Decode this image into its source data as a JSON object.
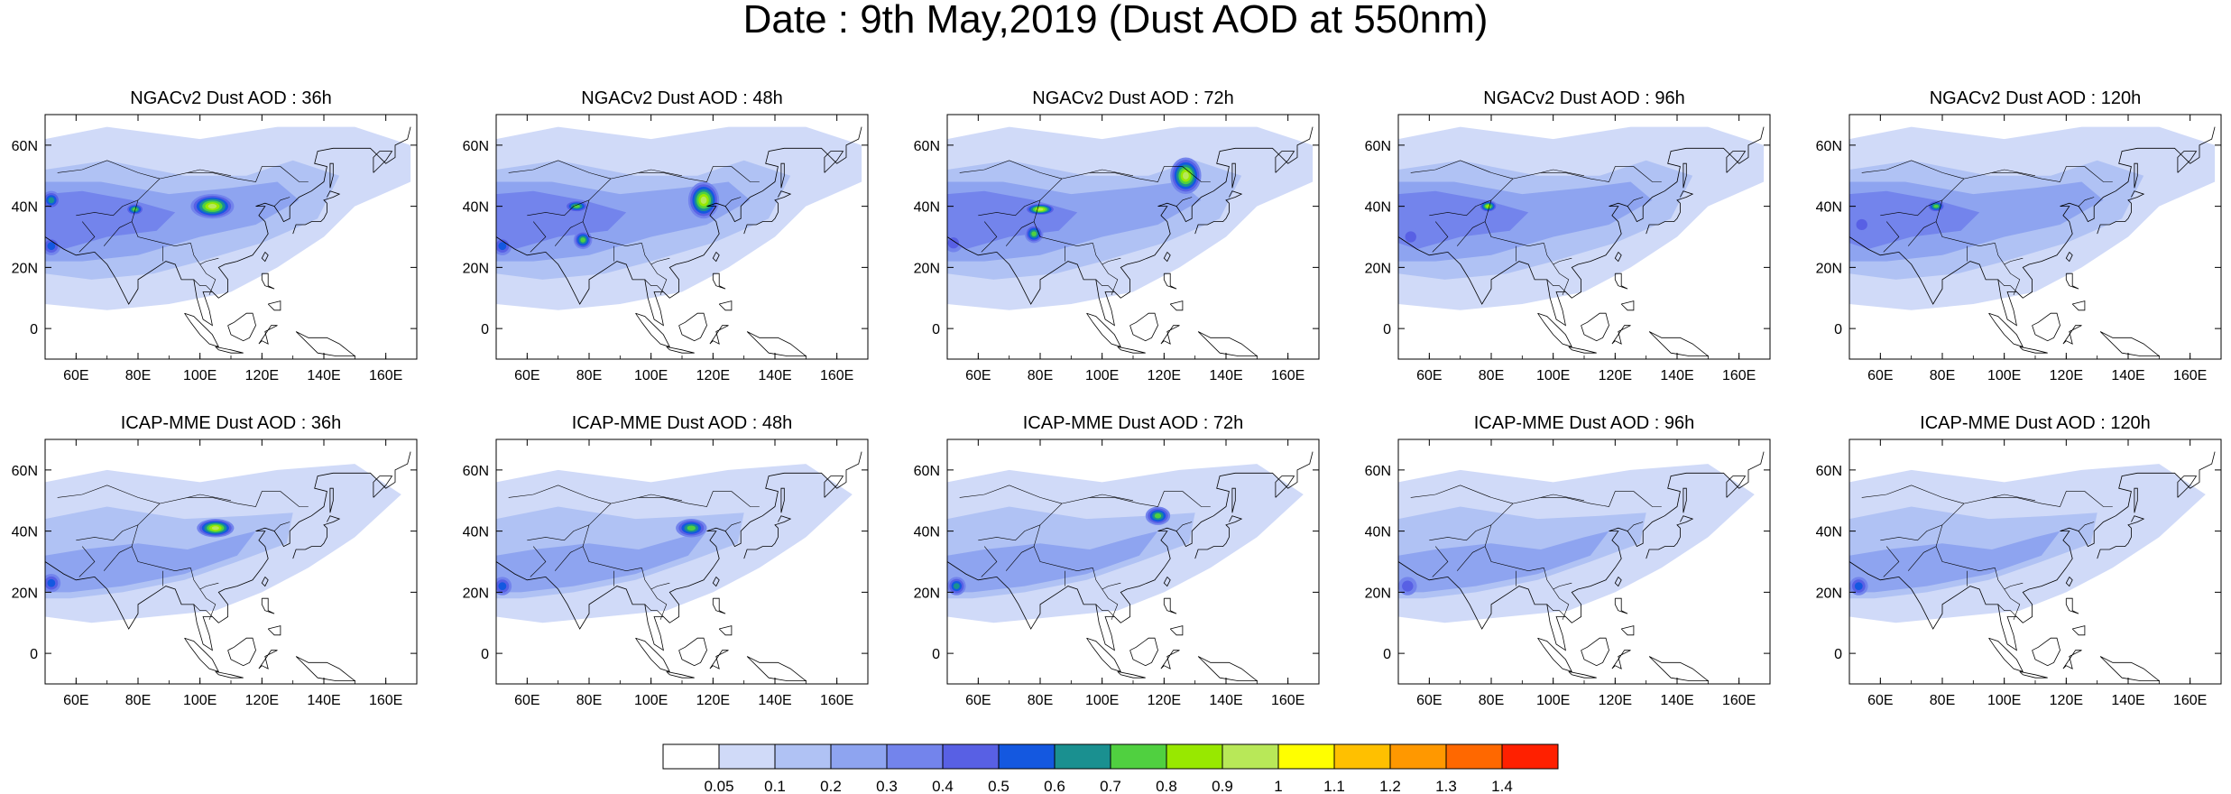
{
  "title": "Date : 9th May,2019 (Dust AOD at 550nm)",
  "lon_ticks": [
    "60E",
    "80E",
    "100E",
    "120E",
    "140E",
    "160E"
  ],
  "lat_ticks": [
    "60N",
    "40N",
    "20N",
    "0"
  ],
  "lon_values": [
    60,
    80,
    100,
    120,
    140,
    160
  ],
  "lat_values": [
    60,
    40,
    20,
    0
  ],
  "extent": {
    "lon_min": 50,
    "lon_max": 170,
    "lat_min": -10,
    "lat_max": 70
  },
  "panels": [
    {
      "title": "NGACv2 Dust AOD : 36h",
      "hotspots": [
        {
          "lon": 104,
          "lat": 40,
          "level": 10,
          "rx": 7,
          "ry": 4
        },
        {
          "lon": 79,
          "lat": 39,
          "level": 8,
          "rx": 3,
          "ry": 2
        },
        {
          "lon": 52,
          "lat": 42,
          "level": 7,
          "rx": 3,
          "ry": 3
        },
        {
          "lon": 52,
          "lat": 27,
          "level": 6,
          "rx": 3,
          "ry": 3
        }
      ]
    },
    {
      "title": "NGACv2 Dust AOD : 48h",
      "hotspots": [
        {
          "lon": 117,
          "lat": 42,
          "level": 10,
          "rx": 5,
          "ry": 6
        },
        {
          "lon": 76,
          "lat": 40,
          "level": 8,
          "rx": 4,
          "ry": 2
        },
        {
          "lon": 78,
          "lat": 29,
          "level": 8,
          "rx": 3,
          "ry": 3
        },
        {
          "lon": 52,
          "lat": 27,
          "level": 6,
          "rx": 3,
          "ry": 3
        }
      ]
    },
    {
      "title": "NGACv2 Dust AOD : 72h",
      "hotspots": [
        {
          "lon": 127,
          "lat": 50,
          "level": 10,
          "rx": 5,
          "ry": 6
        },
        {
          "lon": 80,
          "lat": 39,
          "level": 10,
          "rx": 5,
          "ry": 2
        },
        {
          "lon": 78,
          "lat": 31,
          "level": 8,
          "rx": 3,
          "ry": 3
        },
        {
          "lon": 52,
          "lat": 28,
          "level": 5,
          "rx": 3,
          "ry": 3
        }
      ]
    },
    {
      "title": "NGACv2 Dust AOD : 96h",
      "hotspots": [
        {
          "lon": 79,
          "lat": 40,
          "level": 9,
          "rx": 3,
          "ry": 2
        },
        {
          "lon": 54,
          "lat": 30,
          "level": 5,
          "rx": 3,
          "ry": 3
        }
      ]
    },
    {
      "title": "NGACv2 Dust AOD : 120h",
      "hotspots": [
        {
          "lon": 78,
          "lat": 40,
          "level": 8,
          "rx": 3,
          "ry": 2
        },
        {
          "lon": 54,
          "lat": 34,
          "level": 5,
          "rx": 3,
          "ry": 3
        }
      ]
    },
    {
      "title": "ICAP-MME Dust AOD : 36h",
      "hotspots": [
        {
          "lon": 105,
          "lat": 41,
          "level": 10,
          "rx": 6,
          "ry": 3
        },
        {
          "lon": 52,
          "lat": 23,
          "level": 6,
          "rx": 3,
          "ry": 3
        }
      ]
    },
    {
      "title": "ICAP-MME Dust AOD : 48h",
      "hotspots": [
        {
          "lon": 113,
          "lat": 41,
          "level": 8,
          "rx": 5,
          "ry": 3
        },
        {
          "lon": 52,
          "lat": 22,
          "level": 6,
          "rx": 3,
          "ry": 3
        }
      ]
    },
    {
      "title": "ICAP-MME Dust AOD : 72h",
      "hotspots": [
        {
          "lon": 118,
          "lat": 45,
          "level": 8,
          "rx": 4,
          "ry": 3
        },
        {
          "lon": 53,
          "lat": 22,
          "level": 7,
          "rx": 3,
          "ry": 3
        }
      ]
    },
    {
      "title": "ICAP-MME Dust AOD : 96h",
      "hotspots": [
        {
          "lon": 53,
          "lat": 22,
          "level": 5,
          "rx": 3,
          "ry": 3
        }
      ]
    },
    {
      "title": "ICAP-MME Dust AOD : 120h",
      "hotspots": [
        {
          "lon": 53,
          "lat": 22,
          "level": 6,
          "rx": 3,
          "ry": 3
        }
      ]
    }
  ],
  "colorbar": {
    "colors": [
      "#ffffff",
      "#d0daf8",
      "#b0c2f4",
      "#8ea4f0",
      "#7384ec",
      "#5860e4",
      "#1458e0",
      "#1a9090",
      "#50d040",
      "#98e800",
      "#b8e858",
      "#ffff00",
      "#ffc000",
      "#ff9800",
      "#ff6800",
      "#ff2000"
    ],
    "labels": [
      "0.05",
      "0.1",
      "0.2",
      "0.3",
      "0.4",
      "0.5",
      "0.6",
      "0.7",
      "0.8",
      "0.9",
      "1",
      "1.1",
      "1.2",
      "1.3",
      "1.4"
    ]
  }
}
